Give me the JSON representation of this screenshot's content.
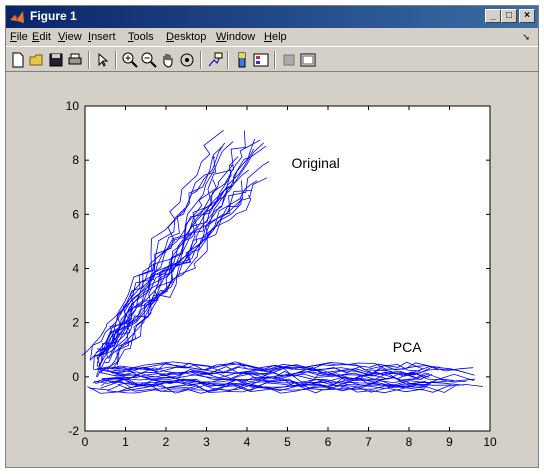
{
  "window": {
    "title": "Figure 1",
    "minimize": "_",
    "maximize": "□",
    "close": "×"
  },
  "menu": [
    "File",
    "Edit",
    "View",
    "Insert",
    "Tools",
    "Desktop",
    "Window",
    "Help"
  ],
  "toolbar_icons": [
    "new-figure-icon",
    "open-file-icon",
    "save-icon",
    "print-icon",
    "select-arrow-icon",
    "zoom-in-icon",
    "zoom-out-icon",
    "pan-hand-icon",
    "rotate-3d-icon",
    "data-cursor-icon",
    "colorbar-icon",
    "legend-icon",
    "hide-plot-tools-icon",
    "show-plot-tools-icon"
  ],
  "colors": {
    "series": "#0000ff",
    "axes_bg": "#ffffff",
    "figure_bg": "#d4d0c8"
  },
  "chart_data": {
    "type": "line",
    "title": "",
    "xlabel": "",
    "ylabel": "",
    "xlim": [
      0,
      10
    ],
    "ylim": [
      -2,
      10
    ],
    "xticks": [
      0,
      1,
      2,
      3,
      4,
      5,
      6,
      7,
      8,
      9,
      10
    ],
    "yticks": [
      -2,
      0,
      2,
      4,
      6,
      8,
      10
    ],
    "grid": false,
    "annotations": [
      {
        "text": "Original",
        "x": 5.1,
        "y": 7.9
      },
      {
        "text": "PCA",
        "x": 7.6,
        "y": 1.1
      }
    ],
    "series": [
      {
        "group": "original",
        "description_points": [
          [
            0.1,
            0.4
          ],
          [
            0.6,
            1.6
          ],
          [
            1.2,
            2.8
          ],
          [
            1.9,
            4.0
          ],
          [
            2.6,
            5.3
          ],
          [
            3.2,
            6.7
          ],
          [
            3.7,
            8.0
          ],
          [
            4.0,
            9.0
          ]
        ]
      },
      {
        "group": "pca",
        "description_points": [
          [
            0.0,
            -0.2
          ],
          [
            2.0,
            -0.1
          ],
          [
            4.0,
            0.1
          ],
          [
            6.0,
            0.0
          ],
          [
            8.0,
            -0.1
          ],
          [
            9.8,
            0.1
          ]
        ]
      }
    ]
  }
}
